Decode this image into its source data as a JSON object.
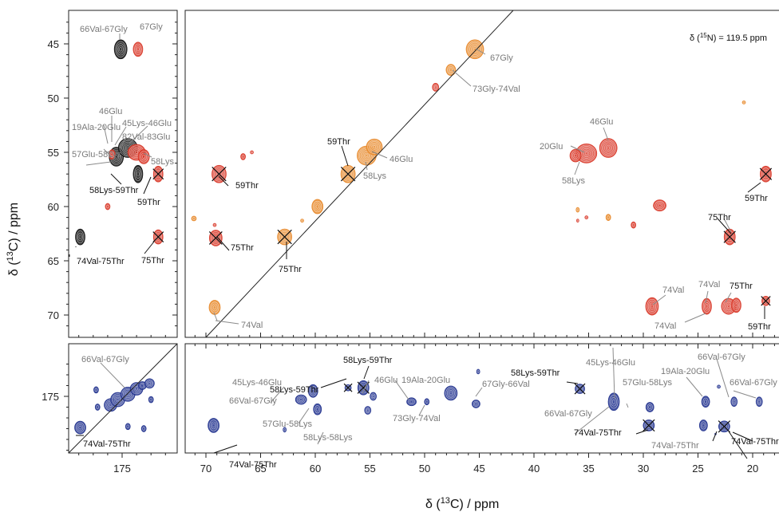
{
  "chart_data": {
    "type": "scatter",
    "n15_annotation": {
      "prefix": "δ (",
      "sup": "15",
      "suffix": "N) = 119.5 ppm"
    },
    "xlabel": {
      "prefix": "δ (",
      "sup": "13",
      "suffix": "C) / ppm"
    },
    "ylabel": {
      "prefix": "δ (",
      "sup": "13",
      "suffix": "C) / ppm"
    },
    "colors": {
      "orange": "#e8892b",
      "red": "#d93a2a",
      "black": "#111111",
      "blue": "#23348f",
      "gray_label": "#7a7a7a",
      "black_label": "#111111"
    },
    "xlim_main": [
      71.5,
      18
    ],
    "xlim_side": [
      179,
      171.5
    ],
    "ylim_top": [
      42.5,
      72
    ],
    "ylim_bottom": [
      171.3,
      180.3
    ],
    "x_ticks_main": [
      70,
      65,
      60,
      55,
      50,
      45,
      40,
      35,
      30,
      25,
      20
    ],
    "x_ticks_side": [
      175
    ],
    "y_ticks_top": [
      45,
      50,
      55,
      60,
      65,
      70
    ],
    "y_ticks_bottom": [
      175
    ],
    "labels": {
      "t1": "66Val-67Gly",
      "t2": "67Gly",
      "t3": "46Glu",
      "t4": "45Lys-46Glu",
      "t5": "19Ala-20Glu",
      "t6": "82Val-83Glu",
      "t7": "58Lys",
      "t8": "57Glu-58Lys",
      "t9": "58Lys-59Thr",
      "t10": "59Thr",
      "t11": "74Val-75Thr",
      "t12": "75Thr",
      "m1": "67Gly",
      "m2": "73Gly-74Val",
      "m3": "59Thr",
      "m4": "46Glu",
      "m5": "58Lys",
      "m6": "59Thr",
      "m7": "75Thr",
      "m8": "75Thr",
      "m9": "74Val",
      "m10": "20Glu",
      "m11": "46Glu",
      "m12": "58Lys",
      "m13": "59Thr",
      "m14": "75Thr",
      "m15": "74Val",
      "m16": "74Val",
      "m17": "75Thr",
      "m18": "74Val",
      "m19": "59Thr",
      "b1": "66Val-67Gly",
      "b2": "74Val-75Thr",
      "n1": "58Lys-59Thr",
      "n2": "58Lys-59Thr",
      "n3": "45Lys-46Glu",
      "n4": "46Glu",
      "n5": "19Ala-20Glu",
      "n6": "66Val-67Gly",
      "n7": "57Glu-58Lys",
      "n8": "58Lys-58Lys",
      "n9": "73Gly-74Val",
      "n10": "67Gly-66Val",
      "n11": "58Lys-59Thr",
      "n12": "45Lys-46Glu",
      "n13": "66Val-67Gly",
      "n14": "57Glu-58Lys",
      "n15": "19Ala-20Glu",
      "n16": "66Val-67Gly",
      "n17": "66Val-67Gly",
      "n18": "74Val-75Thr",
      "n19": "74Val-75Thr",
      "n20": "74Val-75Thr",
      "n21": "74Val-75Thr"
    },
    "peaks_main_top": [
      {
        "x": 45.4,
        "y": 45.5,
        "c": "orange",
        "rx": 11,
        "ry": 12
      },
      {
        "x": 47.6,
        "y": 47.4,
        "c": "orange",
        "rx": 6,
        "ry": 7
      },
      {
        "x": 49.0,
        "y": 49.0,
        "c": "red",
        "rx": 4,
        "ry": 5
      },
      {
        "x": 57.0,
        "y": 57.0,
        "c": "orange",
        "rx": 9,
        "ry": 11,
        "cross": true
      },
      {
        "x": 55.3,
        "y": 55.3,
        "c": "orange",
        "rx": 12,
        "ry": 12
      },
      {
        "x": 54.6,
        "y": 54.5,
        "c": "orange",
        "rx": 10,
        "ry": 10
      },
      {
        "x": 59.8,
        "y": 60.0,
        "c": "orange",
        "rx": 7,
        "ry": 9
      },
      {
        "x": 62.8,
        "y": 62.8,
        "c": "orange",
        "rx": 9,
        "ry": 10,
        "cross": true,
        "crossc": "black"
      },
      {
        "x": 69.2,
        "y": 69.3,
        "c": "orange",
        "rx": 7,
        "ry": 9
      },
      {
        "x": 71.1,
        "y": 61.1,
        "c": "orange",
        "rx": 3,
        "ry": 3
      },
      {
        "x": 61.2,
        "y": 61.3,
        "c": "orange",
        "rx": 2,
        "ry": 2
      },
      {
        "x": 68.8,
        "y": 57.0,
        "c": "red",
        "rx": 9,
        "ry": 11,
        "cross": true
      },
      {
        "x": 66.6,
        "y": 55.4,
        "c": "red",
        "rx": 3,
        "ry": 4
      },
      {
        "x": 65.8,
        "y": 55.0,
        "c": "red",
        "rx": 2,
        "ry": 2
      },
      {
        "x": 69.1,
        "y": 62.9,
        "c": "red",
        "rx": 8,
        "ry": 10,
        "cross": true
      },
      {
        "x": 69.2,
        "y": 61.7,
        "c": "red",
        "rx": 2,
        "ry": 2
      },
      {
        "x": 35.2,
        "y": 55.1,
        "c": "red",
        "rx": 13,
        "ry": 12
      },
      {
        "x": 36.2,
        "y": 55.3,
        "c": "red",
        "rx": 7,
        "ry": 8
      },
      {
        "x": 33.2,
        "y": 54.6,
        "c": "red",
        "rx": 11,
        "ry": 12
      },
      {
        "x": 28.5,
        "y": 59.9,
        "c": "red",
        "rx": 8,
        "ry": 7
      },
      {
        "x": 22.1,
        "y": 62.8,
        "c": "red",
        "rx": 7,
        "ry": 10,
        "cross": true
      },
      {
        "x": 29.2,
        "y": 69.2,
        "c": "red",
        "rx": 8,
        "ry": 11
      },
      {
        "x": 24.2,
        "y": 69.2,
        "c": "red",
        "rx": 6,
        "ry": 10
      },
      {
        "x": 22.2,
        "y": 69.2,
        "c": "red",
        "rx": 9,
        "ry": 10
      },
      {
        "x": 21.5,
        "y": 69.1,
        "c": "red",
        "rx": 6,
        "ry": 9
      },
      {
        "x": 18.8,
        "y": 68.7,
        "c": "red",
        "rx": 5,
        "ry": 6,
        "cross": true
      },
      {
        "x": 18.8,
        "y": 57.0,
        "c": "red",
        "rx": 7,
        "ry": 10,
        "cross": true
      },
      {
        "x": 20.8,
        "y": 50.4,
        "c": "orange",
        "rx": 2,
        "ry": 2
      },
      {
        "x": 36.0,
        "y": 60.3,
        "c": "orange",
        "rx": 2,
        "ry": 3
      },
      {
        "x": 35.2,
        "y": 61.0,
        "c": "red",
        "rx": 2,
        "ry": 2
      },
      {
        "x": 33.2,
        "y": 61.0,
        "c": "orange",
        "rx": 3,
        "ry": 4
      },
      {
        "x": 30.9,
        "y": 61.7,
        "c": "red",
        "rx": 3,
        "ry": 4
      },
      {
        "x": 36.0,
        "y": 61.3,
        "c": "red",
        "rx": 1.5,
        "ry": 2
      }
    ],
    "peaks_side_top": [
      {
        "x": 175.1,
        "y": 45.5,
        "c": "black",
        "rx": 8,
        "ry": 12
      },
      {
        "x": 173.9,
        "y": 45.5,
        "c": "red",
        "rx": 6,
        "ry": 9
      },
      {
        "x": 175.4,
        "y": 55.4,
        "c": "black",
        "rx": 9,
        "ry": 12
      },
      {
        "x": 174.6,
        "y": 54.6,
        "c": "black",
        "rx": 12,
        "ry": 12
      },
      {
        "x": 174.0,
        "y": 55.0,
        "c": "red",
        "rx": 11,
        "ry": 10
      },
      {
        "x": 173.5,
        "y": 55.4,
        "c": "red",
        "rx": 7,
        "ry": 9
      },
      {
        "x": 175.7,
        "y": 55.2,
        "c": "red",
        "rx": 4,
        "ry": 6
      },
      {
        "x": 173.9,
        "y": 57.0,
        "c": "black",
        "rx": 6,
        "ry": 11
      },
      {
        "x": 172.5,
        "y": 57.0,
        "c": "red",
        "rx": 6,
        "ry": 10,
        "cross": true
      },
      {
        "x": 177.9,
        "y": 62.8,
        "c": "black",
        "rx": 6,
        "ry": 10
      },
      {
        "x": 172.5,
        "y": 62.8,
        "c": "red",
        "rx": 6,
        "ry": 9,
        "cross": true
      },
      {
        "x": 176.0,
        "y": 60.0,
        "c": "red",
        "rx": 3,
        "ry": 4
      }
    ],
    "peaks_side_bottom": [
      {
        "x": 177.9,
        "y": 177.9,
        "c": "blue",
        "rx": 7,
        "ry": 8
      },
      {
        "x": 175.8,
        "y": 175.8,
        "c": "blue",
        "rx": 8,
        "ry": 8
      },
      {
        "x": 175.3,
        "y": 175.3,
        "c": "blue",
        "rx": 9,
        "ry": 9
      },
      {
        "x": 174.6,
        "y": 174.8,
        "c": "blue",
        "rx": 9,
        "ry": 9
      },
      {
        "x": 174.0,
        "y": 174.3,
        "c": "blue",
        "rx": 8,
        "ry": 8
      },
      {
        "x": 173.6,
        "y": 174.0,
        "c": "blue",
        "rx": 5,
        "ry": 5
      },
      {
        "x": 173.1,
        "y": 173.8,
        "c": "blue",
        "rx": 6,
        "ry": 6
      },
      {
        "x": 173.0,
        "y": 175.3,
        "c": "blue",
        "rx": 3,
        "ry": 4
      },
      {
        "x": 176.8,
        "y": 174.4,
        "c": "blue",
        "rx": 3,
        "ry": 4
      },
      {
        "x": 176.7,
        "y": 176.0,
        "c": "blue",
        "rx": 3,
        "ry": 4
      },
      {
        "x": 174.6,
        "y": 177.8,
        "c": "blue",
        "rx": 3,
        "ry": 4
      },
      {
        "x": 173.5,
        "y": 178.0,
        "c": "blue",
        "rx": 3,
        "ry": 4
      }
    ],
    "peaks_main_bottom": [
      {
        "x": 69.3,
        "y": 177.7,
        "c": "blue",
        "rx": 7,
        "ry": 9
      },
      {
        "x": 61.3,
        "y": 175.3,
        "c": "blue",
        "rx": 7,
        "ry": 6
      },
      {
        "x": 60.2,
        "y": 174.5,
        "c": "blue",
        "rx": 6,
        "ry": 8
      },
      {
        "x": 59.8,
        "y": 176.2,
        "c": "blue",
        "rx": 5,
        "ry": 7
      },
      {
        "x": 62.8,
        "y": 178.1,
        "c": "blue",
        "rx": 2,
        "ry": 3
      },
      {
        "x": 57.0,
        "y": 174.2,
        "c": "blue",
        "rx": 4,
        "ry": 4,
        "cross": true
      },
      {
        "x": 55.6,
        "y": 174.2,
        "c": "blue",
        "rx": 7,
        "ry": 9,
        "cross": true
      },
      {
        "x": 55.2,
        "y": 176.3,
        "c": "blue",
        "rx": 4,
        "ry": 5
      },
      {
        "x": 54.7,
        "y": 175.0,
        "c": "blue",
        "rx": 4,
        "ry": 5
      },
      {
        "x": 51.2,
        "y": 175.5,
        "c": "blue",
        "rx": 6,
        "ry": 5
      },
      {
        "x": 49.8,
        "y": 175.5,
        "c": "blue",
        "rx": 3,
        "ry": 4
      },
      {
        "x": 47.6,
        "y": 174.7,
        "c": "blue",
        "rx": 8,
        "ry": 9
      },
      {
        "x": 45.3,
        "y": 175.7,
        "c": "blue",
        "rx": 5,
        "ry": 5
      },
      {
        "x": 45.1,
        "y": 172.7,
        "c": "blue",
        "rx": 2,
        "ry": 3
      },
      {
        "x": 35.8,
        "y": 174.3,
        "c": "blue",
        "rx": 6,
        "ry": 6,
        "cross": true
      },
      {
        "x": 32.7,
        "y": 175.5,
        "c": "blue",
        "rx": 7,
        "ry": 11
      },
      {
        "x": 29.4,
        "y": 176.0,
        "c": "blue",
        "rx": 5,
        "ry": 6
      },
      {
        "x": 29.5,
        "y": 177.7,
        "c": "blue",
        "rx": 7,
        "ry": 7,
        "cross": true
      },
      {
        "x": 24.3,
        "y": 175.5,
        "c": "blue",
        "rx": 5,
        "ry": 7
      },
      {
        "x": 24.5,
        "y": 177.7,
        "c": "blue",
        "rx": 5,
        "ry": 7
      },
      {
        "x": 22.6,
        "y": 177.8,
        "c": "blue",
        "rx": 7,
        "ry": 7,
        "cross": true
      },
      {
        "x": 21.7,
        "y": 175.5,
        "c": "blue",
        "rx": 4,
        "ry": 6
      },
      {
        "x": 23.1,
        "y": 174.1,
        "c": "blue",
        "rx": 2,
        "ry": 2
      },
      {
        "x": 19.4,
        "y": 175.5,
        "c": "blue",
        "rx": 4,
        "ry": 6
      },
      {
        "x": 23.4,
        "y": 178.5,
        "c": "blue",
        "rx": 1,
        "ry": 1
      }
    ]
  }
}
